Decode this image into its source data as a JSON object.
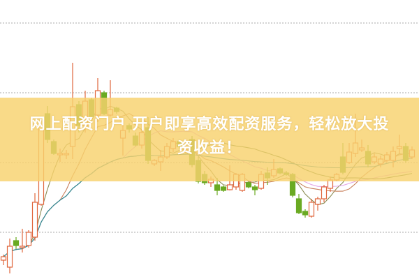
{
  "banner": {
    "line1": "网上配资门户 开户即享高效配资服务，轻松放大投",
    "line2": "资收益！"
  },
  "chart_data": {
    "type": "candlestick",
    "title": "",
    "xlabel": "",
    "ylabel": "",
    "ylim": [
      0,
      43.3
    ],
    "grid": true,
    "gridlines": [
      10,
      20,
      30,
      40
    ],
    "colors": {
      "up": "#e0663c",
      "down": "#6aaa22",
      "banner": "#f8d26e"
    },
    "moving_averages": [
      {
        "period": 5,
        "color": "#8a8a50"
      },
      {
        "period": 10,
        "color": "#c87f5a"
      },
      {
        "period": 20,
        "color": "#e4a6e6"
      },
      {
        "period": 30,
        "color": "#5c7c3a"
      },
      {
        "period": 60,
        "color": "#2f8c9c"
      }
    ],
    "candles": [
      [
        6.0,
        6.8,
        5.3,
        6.5
      ],
      [
        5.0,
        9.1,
        4.1,
        8.0
      ],
      [
        8.8,
        9.3,
        7.6,
        8.1
      ],
      [
        7.8,
        10.5,
        7.1,
        8.0
      ],
      [
        8.1,
        10.3,
        7.8,
        10.0
      ],
      [
        9.3,
        15.6,
        8.8,
        14.3
      ],
      [
        14.0,
        25.3,
        13.8,
        25.3
      ],
      [
        27.0,
        28.1,
        22.8,
        23.3
      ],
      [
        23.0,
        23.3,
        21.1,
        21.3
      ],
      [
        21.1,
        22.0,
        20.1,
        21.3
      ],
      [
        21.1,
        21.8,
        20.5,
        21.3
      ],
      [
        22.3,
        34.3,
        20.5,
        28.0
      ],
      [
        28.3,
        28.8,
        24.3,
        25.3
      ],
      [
        25.3,
        30.3,
        24.3,
        28.8
      ],
      [
        29.0,
        29.3,
        26.3,
        26.6
      ],
      [
        26.8,
        32.1,
        25.8,
        30.3
      ],
      [
        30.0,
        30.3,
        26.8,
        27.0
      ],
      [
        26.8,
        31.8,
        26.6,
        27.6
      ],
      [
        27.8,
        28.0,
        27.0,
        27.3
      ],
      [
        23.5,
        26.3,
        21.0,
        24.6
      ],
      [
        25.3,
        25.6,
        24.3,
        24.8
      ],
      [
        23.8,
        24.3,
        22.3,
        22.5
      ],
      [
        22.5,
        24.8,
        22.0,
        24.3
      ],
      [
        25.0,
        26.5,
        19.8,
        20.3
      ],
      [
        19.8,
        20.5,
        19.5,
        20.3
      ],
      [
        20.1,
        21.8,
        18.8,
        20.8
      ],
      [
        20.8,
        22.8,
        20.5,
        22.3
      ],
      [
        22.0,
        23.5,
        21.5,
        23.0
      ],
      [
        23.0,
        23.3,
        22.0,
        22.3
      ],
      [
        21.8,
        22.5,
        21.3,
        22.3
      ],
      [
        23.3,
        23.8,
        19.3,
        19.7
      ],
      [
        20.3,
        20.8,
        17.0,
        17.3
      ],
      [
        18.3,
        18.8,
        16.8,
        17.1
      ],
      [
        17.1,
        18.0,
        16.5,
        17.6
      ],
      [
        16.8,
        17.8,
        15.3,
        16.0
      ],
      [
        16.5,
        16.7,
        15.8,
        16.0
      ],
      [
        16.1,
        19.6,
        16.0,
        16.8
      ],
      [
        16.5,
        18.5,
        16.1,
        18.3
      ],
      [
        16.0,
        18.5,
        15.8,
        18.3
      ],
      [
        17.1,
        17.3,
        16.3,
        16.5
      ],
      [
        16.5,
        16.8,
        15.3,
        16.1
      ],
      [
        16.3,
        18.8,
        16.1,
        18.3
      ],
      [
        18.5,
        19.3,
        16.8,
        17.8
      ],
      [
        18.1,
        20.5,
        17.8,
        19.0
      ],
      [
        19.1,
        19.3,
        18.3,
        18.5
      ],
      [
        18.5,
        18.8,
        18.1,
        18.3
      ],
      [
        18.3,
        18.5,
        15.0,
        15.3
      ],
      [
        14.8,
        15.5,
        12.6,
        12.8
      ],
      [
        13.0,
        13.3,
        12.1,
        12.5
      ],
      [
        12.3,
        14.8,
        12.1,
        14.3
      ],
      [
        14.0,
        15.1,
        13.1,
        14.8
      ],
      [
        14.8,
        16.8,
        14.3,
        16.5
      ],
      [
        16.3,
        18.0,
        15.8,
        17.5
      ],
      [
        17.5,
        18.5,
        17.3,
        18.3
      ],
      [
        20.8,
        22.8,
        18.3,
        18.6
      ],
      [
        20.0,
        22.8,
        19.8,
        21.5
      ],
      [
        21.3,
        27.0,
        20.8,
        22.8
      ],
      [
        21.8,
        23.3,
        21.5,
        22.1
      ],
      [
        21.6,
        22.5,
        19.3,
        19.8
      ],
      [
        20.1,
        21.3,
        19.8,
        20.8
      ],
      [
        19.8,
        21.0,
        19.3,
        20.5
      ],
      [
        20.3,
        21.5,
        20.0,
        21.1
      ],
      [
        20.3,
        22.3,
        19.3,
        21.6
      ],
      [
        22.0,
        24.0,
        21.3,
        22.3
      ],
      [
        22.3,
        22.8,
        20.0,
        20.3
      ],
      [
        20.8,
        22.3,
        20.5,
        21.8
      ]
    ]
  }
}
